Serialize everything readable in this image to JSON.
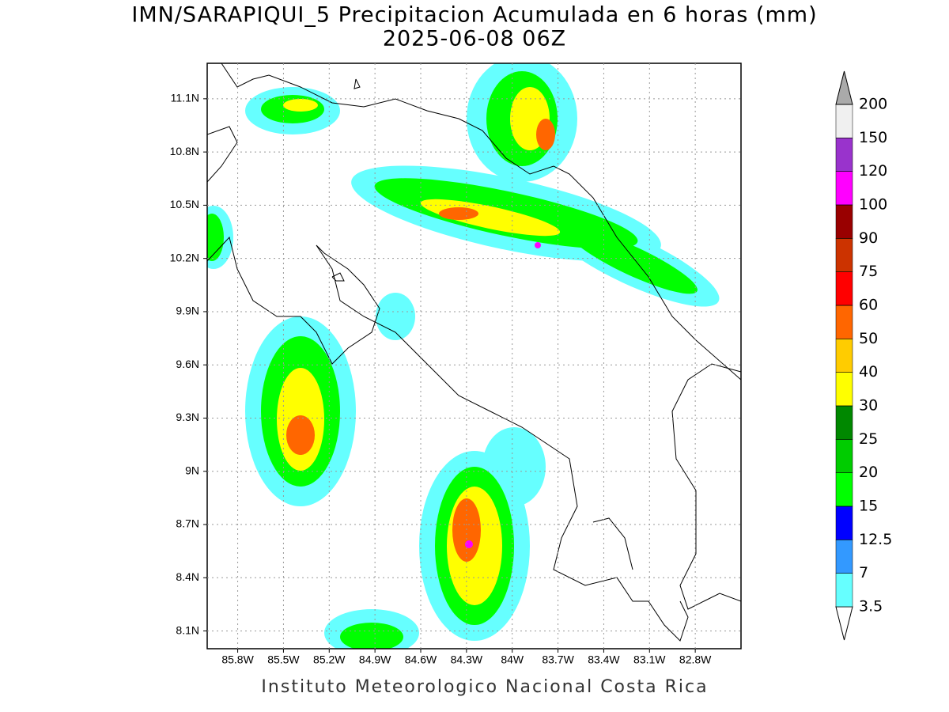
{
  "title": "IMN/SARAPIQUI_5 Precipitacion Acumulada en 6 horas (mm)",
  "subtitle": "2025-06-08 06Z",
  "map": {
    "lonlim": [
      -86.0,
      -82.5
    ],
    "latlim": [
      8.0,
      11.3
    ],
    "grid": true,
    "latticks": [
      {
        "value": 8.1,
        "label": "8.1N"
      },
      {
        "value": 8.4,
        "label": "8.4N"
      },
      {
        "value": 8.7,
        "label": "8.7N"
      },
      {
        "value": 9.0,
        "label": "9N"
      },
      {
        "value": 9.3,
        "label": "9.3N"
      },
      {
        "value": 9.6,
        "label": "9.6N"
      },
      {
        "value": 9.9,
        "label": "9.9N"
      },
      {
        "value": 10.2,
        "label": "10.2N"
      },
      {
        "value": 10.5,
        "label": "10.5N"
      },
      {
        "value": 10.8,
        "label": "10.8N"
      },
      {
        "value": 11.1,
        "label": "11.1N"
      }
    ],
    "lonticks": [
      {
        "value": -85.8,
        "label": "85.8W"
      },
      {
        "value": -85.5,
        "label": "85.5W"
      },
      {
        "value": -85.2,
        "label": "85.2W"
      },
      {
        "value": -84.9,
        "label": "84.9W"
      },
      {
        "value": -84.6,
        "label": "84.6W"
      },
      {
        "value": -84.3,
        "label": "84.3W"
      },
      {
        "value": -84.0,
        "label": "84W"
      },
      {
        "value": -83.7,
        "label": "83.7W"
      },
      {
        "value": -83.4,
        "label": "83.4W"
      },
      {
        "value": -83.1,
        "label": "83.1W"
      },
      {
        "value": -82.8,
        "label": "82.8W"
      }
    ]
  },
  "colorbar": {
    "levels": [
      3.5,
      7,
      12.5,
      15,
      20,
      25,
      30,
      40,
      50,
      60,
      75,
      90,
      100,
      120,
      150,
      200
    ],
    "colors": [
      "#ffffff",
      "#66ffff",
      "#3399ff",
      "#0000ff",
      "#00ff00",
      "#00cc00",
      "#008800",
      "#ffff00",
      "#ffcc00",
      "#ff6600",
      "#ff0000",
      "#cc3300",
      "#990000",
      "#ff00ff",
      "#9933cc",
      "#f0f0f0",
      "#aaaaaa"
    ]
  },
  "footer": "Instituto Meteorologico Nacional Costa Rica"
}
